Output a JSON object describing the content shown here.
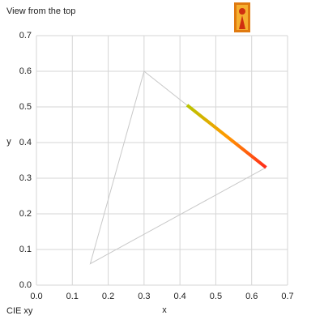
{
  "chart_data": {
    "type": "line",
    "title": "View from the top",
    "subtitle": "CIE xy",
    "xlabel": "x",
    "ylabel": "y",
    "series": [
      {
        "x": [
          0.64,
          0.3,
          0.15,
          0.64
        ],
        "values": [
          0.33,
          0.6,
          0.06,
          0.33
        ],
        "color": "#c8c8c8"
      },
      {
        "x": [
          0.42,
          0.64
        ],
        "values": [
          0.505,
          0.33
        ],
        "colors": [
          "#b8c400",
          "#ff9a00",
          "#ff2a1a"
        ]
      }
    ],
    "xlim": [
      0,
      0.7
    ],
    "ylim": [
      0,
      0.7
    ],
    "xticks": [
      {
        "value": 0,
        "label": "0.0"
      },
      0.1,
      0.2,
      0.3,
      0.4,
      0.5,
      0.6,
      0.7
    ],
    "yticks": [
      {
        "value": 0,
        "label": "0.0"
      },
      0.1,
      0.2,
      0.3,
      0.4,
      0.5,
      0.6,
      0.7
    ],
    "grid": true
  }
}
